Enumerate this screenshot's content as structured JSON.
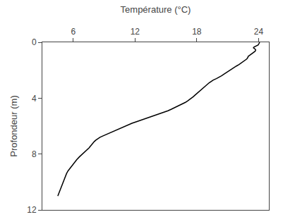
{
  "chart_data": {
    "type": "line",
    "xlabel": "Température (°C)",
    "ylabel": "Profondeur (m)",
    "x": [
      4.5,
      4.6,
      4.7,
      4.8,
      4.9,
      5.0,
      5.1,
      5.2,
      5.35,
      5.5,
      5.7,
      5.9,
      6.1,
      6.35,
      6.6,
      6.9,
      7.1,
      7.2,
      7.35,
      7.45,
      7.5,
      7.55,
      7.6,
      7.65,
      7.7,
      7.8,
      7.9,
      8.05,
      8.2,
      8.4,
      8.6,
      8.9,
      9.2,
      9.5,
      9.8,
      10.1,
      10.4,
      10.7,
      11.0,
      11.3,
      11.7,
      12.1,
      12.5,
      12.9,
      13.3,
      13.7,
      14.1,
      14.5,
      14.9,
      15.2,
      15.5,
      15.8,
      16.1,
      16.4,
      16.6,
      16.9,
      17.1,
      17.3,
      17.5,
      17.65,
      17.8,
      17.95,
      18.1,
      18.25,
      18.4,
      18.55,
      18.7,
      18.85,
      19.0,
      19.2,
      19.4,
      19.6,
      19.9,
      20.2,
      20.4,
      20.6,
      20.8,
      21.0,
      21.2,
      21.4,
      21.6,
      21.85,
      22.1,
      22.3,
      22.5,
      22.7,
      22.85,
      22.95,
      23.0,
      23.1,
      23.2,
      23.3,
      23.4,
      23.5,
      23.6,
      23.65,
      23.7,
      23.72,
      23.68,
      23.6,
      23.5,
      23.55,
      23.7,
      23.85,
      23.95,
      24.0,
      24.05,
      24.1,
      24.1
    ],
    "values": [
      11.0,
      10.8,
      10.6,
      10.4,
      10.2,
      10.0,
      9.8,
      9.6,
      9.4,
      9.2,
      9.0,
      8.8,
      8.6,
      8.4,
      8.2,
      8.0,
      7.9,
      7.8,
      7.7,
      7.65,
      7.6,
      7.55,
      7.5,
      7.45,
      7.4,
      7.3,
      7.2,
      7.1,
      7.0,
      6.9,
      6.8,
      6.7,
      6.6,
      6.5,
      6.4,
      6.3,
      6.2,
      6.1,
      6.0,
      5.9,
      5.8,
      5.7,
      5.6,
      5.5,
      5.4,
      5.3,
      5.2,
      5.1,
      5.0,
      4.9,
      4.8,
      4.7,
      4.6,
      4.5,
      4.4,
      4.3,
      4.2,
      4.1,
      4.0,
      3.9,
      3.8,
      3.7,
      3.6,
      3.5,
      3.4,
      3.3,
      3.2,
      3.1,
      3.0,
      2.9,
      2.8,
      2.7,
      2.6,
      2.5,
      2.4,
      2.3,
      2.2,
      2.1,
      2.0,
      1.9,
      1.8,
      1.7,
      1.6,
      1.5,
      1.4,
      1.3,
      1.2,
      1.1,
      1.0,
      0.95,
      0.9,
      0.85,
      0.8,
      0.75,
      0.7,
      0.65,
      0.6,
      0.55,
      0.5,
      0.45,
      0.4,
      0.35,
      0.3,
      0.25,
      0.2,
      0.15,
      0.1,
      0.05,
      0.0
    ],
    "color": "#000000",
    "xlim": [
      3,
      25
    ],
    "ylim": [
      12,
      0
    ],
    "xticks": [
      6,
      12,
      18,
      24
    ],
    "yticks": [
      0,
      4,
      8,
      12
    ],
    "grid": false
  }
}
